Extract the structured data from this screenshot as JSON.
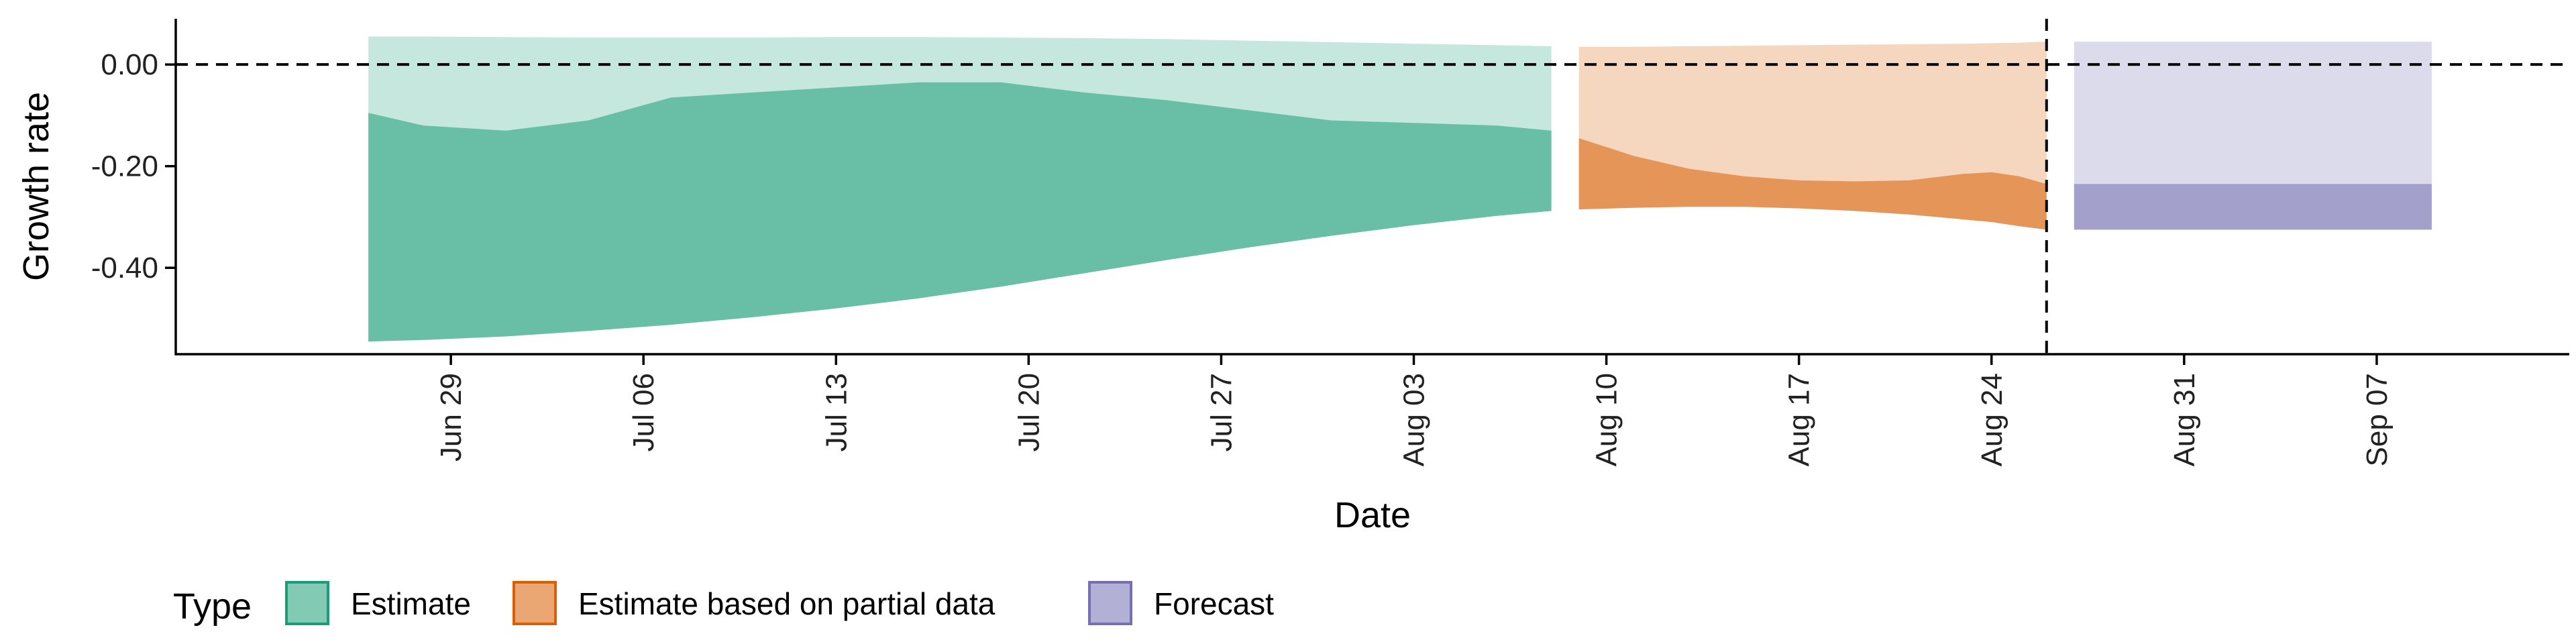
{
  "chart_data": {
    "type": "area",
    "xlabel": "Date",
    "ylabel": "Growth rate",
    "x_ticks": [
      "2020-06-29",
      "2020-07-06",
      "2020-07-13",
      "2020-07-20",
      "2020-07-27",
      "2020-08-03",
      "2020-08-10",
      "2020-08-17",
      "2020-08-24",
      "2020-08-31",
      "2020-09-07"
    ],
    "x_tick_labels": [
      "Jun 29",
      "Jul 06",
      "Jul 13",
      "Jul 20",
      "Jul 27",
      "Aug 03",
      "Aug 10",
      "Aug 17",
      "Aug 24",
      "Aug 31",
      "Sep 07"
    ],
    "xlim": [
      "2020-06-19",
      "2020-09-14"
    ],
    "y_ticks": [
      0.0,
      -0.2,
      -0.4
    ],
    "y_tick_labels": [
      "0.00",
      "-0.20",
      "-0.40"
    ],
    "ylim": [
      -0.57,
      0.09
    ],
    "hline_y": 0.0,
    "vline_x": "2020-08-26",
    "grid": false,
    "legend": {
      "title": "Type",
      "position": "bottom",
      "entries": [
        "Estimate",
        "Estimate based on partial data",
        "Forecast"
      ]
    },
    "series": [
      {
        "name": "Estimate",
        "color": "#1b9e77",
        "x": [
          "2020-06-26",
          "2020-06-28",
          "2020-07-01",
          "2020-07-04",
          "2020-07-07",
          "2020-07-10",
          "2020-07-13",
          "2020-07-16",
          "2020-07-19",
          "2020-07-22",
          "2020-07-25",
          "2020-07-28",
          "2020-07-31",
          "2020-08-03",
          "2020-08-06",
          "2020-08-08"
        ],
        "outer_lower": [
          -0.545,
          -0.542,
          -0.535,
          -0.524,
          -0.512,
          -0.497,
          -0.48,
          -0.46,
          -0.437,
          -0.411,
          -0.385,
          -0.36,
          -0.337,
          -0.316,
          -0.298,
          -0.288
        ],
        "outer_upper": [
          0.055,
          0.055,
          0.054,
          0.053,
          0.053,
          0.053,
          0.054,
          0.054,
          0.053,
          0.052,
          0.05,
          0.047,
          0.044,
          0.041,
          0.038,
          0.036
        ],
        "inner_lower": [
          -0.545,
          -0.542,
          -0.535,
          -0.524,
          -0.512,
          -0.497,
          -0.48,
          -0.46,
          -0.437,
          -0.411,
          -0.385,
          -0.36,
          -0.337,
          -0.316,
          -0.298,
          -0.288
        ],
        "inner_upper": [
          -0.095,
          -0.12,
          -0.13,
          -0.11,
          -0.065,
          -0.055,
          -0.045,
          -0.035,
          -0.035,
          -0.055,
          -0.07,
          -0.09,
          -0.11,
          -0.115,
          -0.12,
          -0.13
        ]
      },
      {
        "name": "Estimate based on partial data",
        "color": "#d95f02",
        "x": [
          "2020-08-09",
          "2020-08-11",
          "2020-08-13",
          "2020-08-15",
          "2020-08-17",
          "2020-08-19",
          "2020-08-21",
          "2020-08-23",
          "2020-08-24",
          "2020-08-25",
          "2020-08-26"
        ],
        "outer_lower": [
          -0.285,
          -0.282,
          -0.28,
          -0.28,
          -0.283,
          -0.288,
          -0.295,
          -0.305,
          -0.31,
          -0.318,
          -0.325
        ],
        "outer_upper": [
          0.035,
          0.035,
          0.036,
          0.037,
          0.038,
          0.039,
          0.04,
          0.041,
          0.042,
          0.043,
          0.045
        ],
        "inner_lower": [
          -0.285,
          -0.282,
          -0.28,
          -0.28,
          -0.283,
          -0.288,
          -0.295,
          -0.305,
          -0.31,
          -0.318,
          -0.325
        ],
        "inner_upper": [
          -0.145,
          -0.18,
          -0.205,
          -0.22,
          -0.228,
          -0.23,
          -0.228,
          -0.215,
          -0.212,
          -0.22,
          -0.235
        ]
      },
      {
        "name": "Forecast",
        "color": "#7570b3",
        "x": [
          "2020-08-27",
          "2020-09-09"
        ],
        "outer_lower": [
          -0.325,
          -0.325
        ],
        "outer_upper": [
          0.045,
          0.045
        ],
        "inner_lower": [
          -0.325,
          -0.325
        ],
        "inner_upper": [
          -0.235,
          -0.235
        ]
      }
    ]
  }
}
